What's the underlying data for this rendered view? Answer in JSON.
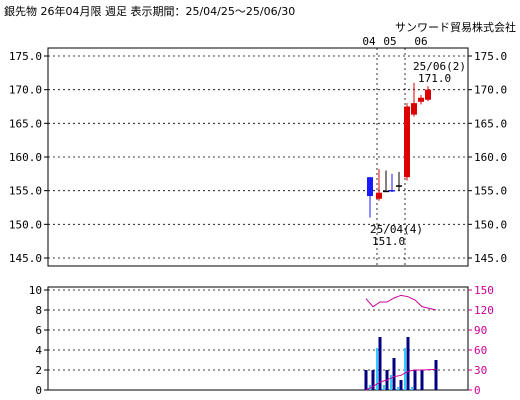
{
  "header": {
    "title": "銀先物 26年04月限 週足  表示期間：25/04/25～25/06/30",
    "company": "サンワード貿易株式会社"
  },
  "chart_data": [
    {
      "type": "candlestick",
      "x_labels": [
        "04",
        "05",
        "06"
      ],
      "ylim": [
        145.0,
        175.0
      ],
      "y_ticks": [
        "175.0",
        "170.0",
        "165.0",
        "160.0",
        "155.0",
        "150.0",
        "145.0"
      ],
      "candles": [
        {
          "open": 157.0,
          "high": 157.0,
          "low": 151.0,
          "close": 154.2,
          "color": "#1a1aff"
        },
        {
          "open": 153.8,
          "high": 158.2,
          "low": 153.5,
          "close": 154.7,
          "color": "#dd0000"
        },
        {
          "open": 155.0,
          "high": 158.0,
          "low": 154.8,
          "close": 155.0,
          "color": "#000000"
        },
        {
          "open": 155.0,
          "high": 157.5,
          "low": 154.8,
          "close": 155.1,
          "color": "#1a1aff"
        },
        {
          "open": 155.8,
          "high": 157.8,
          "low": 155.0,
          "close": 155.8,
          "color": "#000000"
        },
        {
          "open": 157.0,
          "high": 168.0,
          "low": 156.5,
          "close": 167.5,
          "color": "#dd0000"
        },
        {
          "open": 166.3,
          "high": 171.0,
          "low": 166.0,
          "close": 168.0,
          "color": "#dd0000"
        },
        {
          "open": 168.2,
          "high": 169.2,
          "low": 167.8,
          "close": 168.8,
          "color": "#dd0000"
        },
        {
          "open": 168.5,
          "high": 170.5,
          "low": 168.3,
          "close": 170.0,
          "color": "#dd0000"
        }
      ],
      "annotations": [
        {
          "date": "25/06(2)",
          "value": "171.0"
        },
        {
          "date": "25/04(4)",
          "value": "151.0"
        }
      ]
    },
    {
      "type": "bar",
      "left_ylim": [
        0,
        10
      ],
      "left_ticks": [
        "10",
        "8",
        "6",
        "4",
        "2",
        "0"
      ],
      "right_ylim": [
        0,
        150
      ],
      "right_ticks": [
        "150",
        "120",
        "90",
        "60",
        "30",
        "0"
      ],
      "bars_primary": [
        2,
        2,
        5.3,
        2,
        3.2,
        1,
        5.3,
        2,
        2,
        3
      ],
      "bars_secondary": [
        0,
        0.5,
        4.2,
        0.5,
        1.5,
        0.3,
        4.2,
        0.3,
        0,
        0
      ],
      "line_a": {
        "color": "#cc0099",
        "values": [
          137,
          125,
          132,
          132,
          138,
          142,
          140,
          135,
          125,
          120
        ]
      },
      "line_b": {
        "color": "#cc0099",
        "values": [
          0,
          5,
          12,
          15,
          20,
          22,
          28,
          30,
          30,
          31
        ]
      }
    }
  ]
}
